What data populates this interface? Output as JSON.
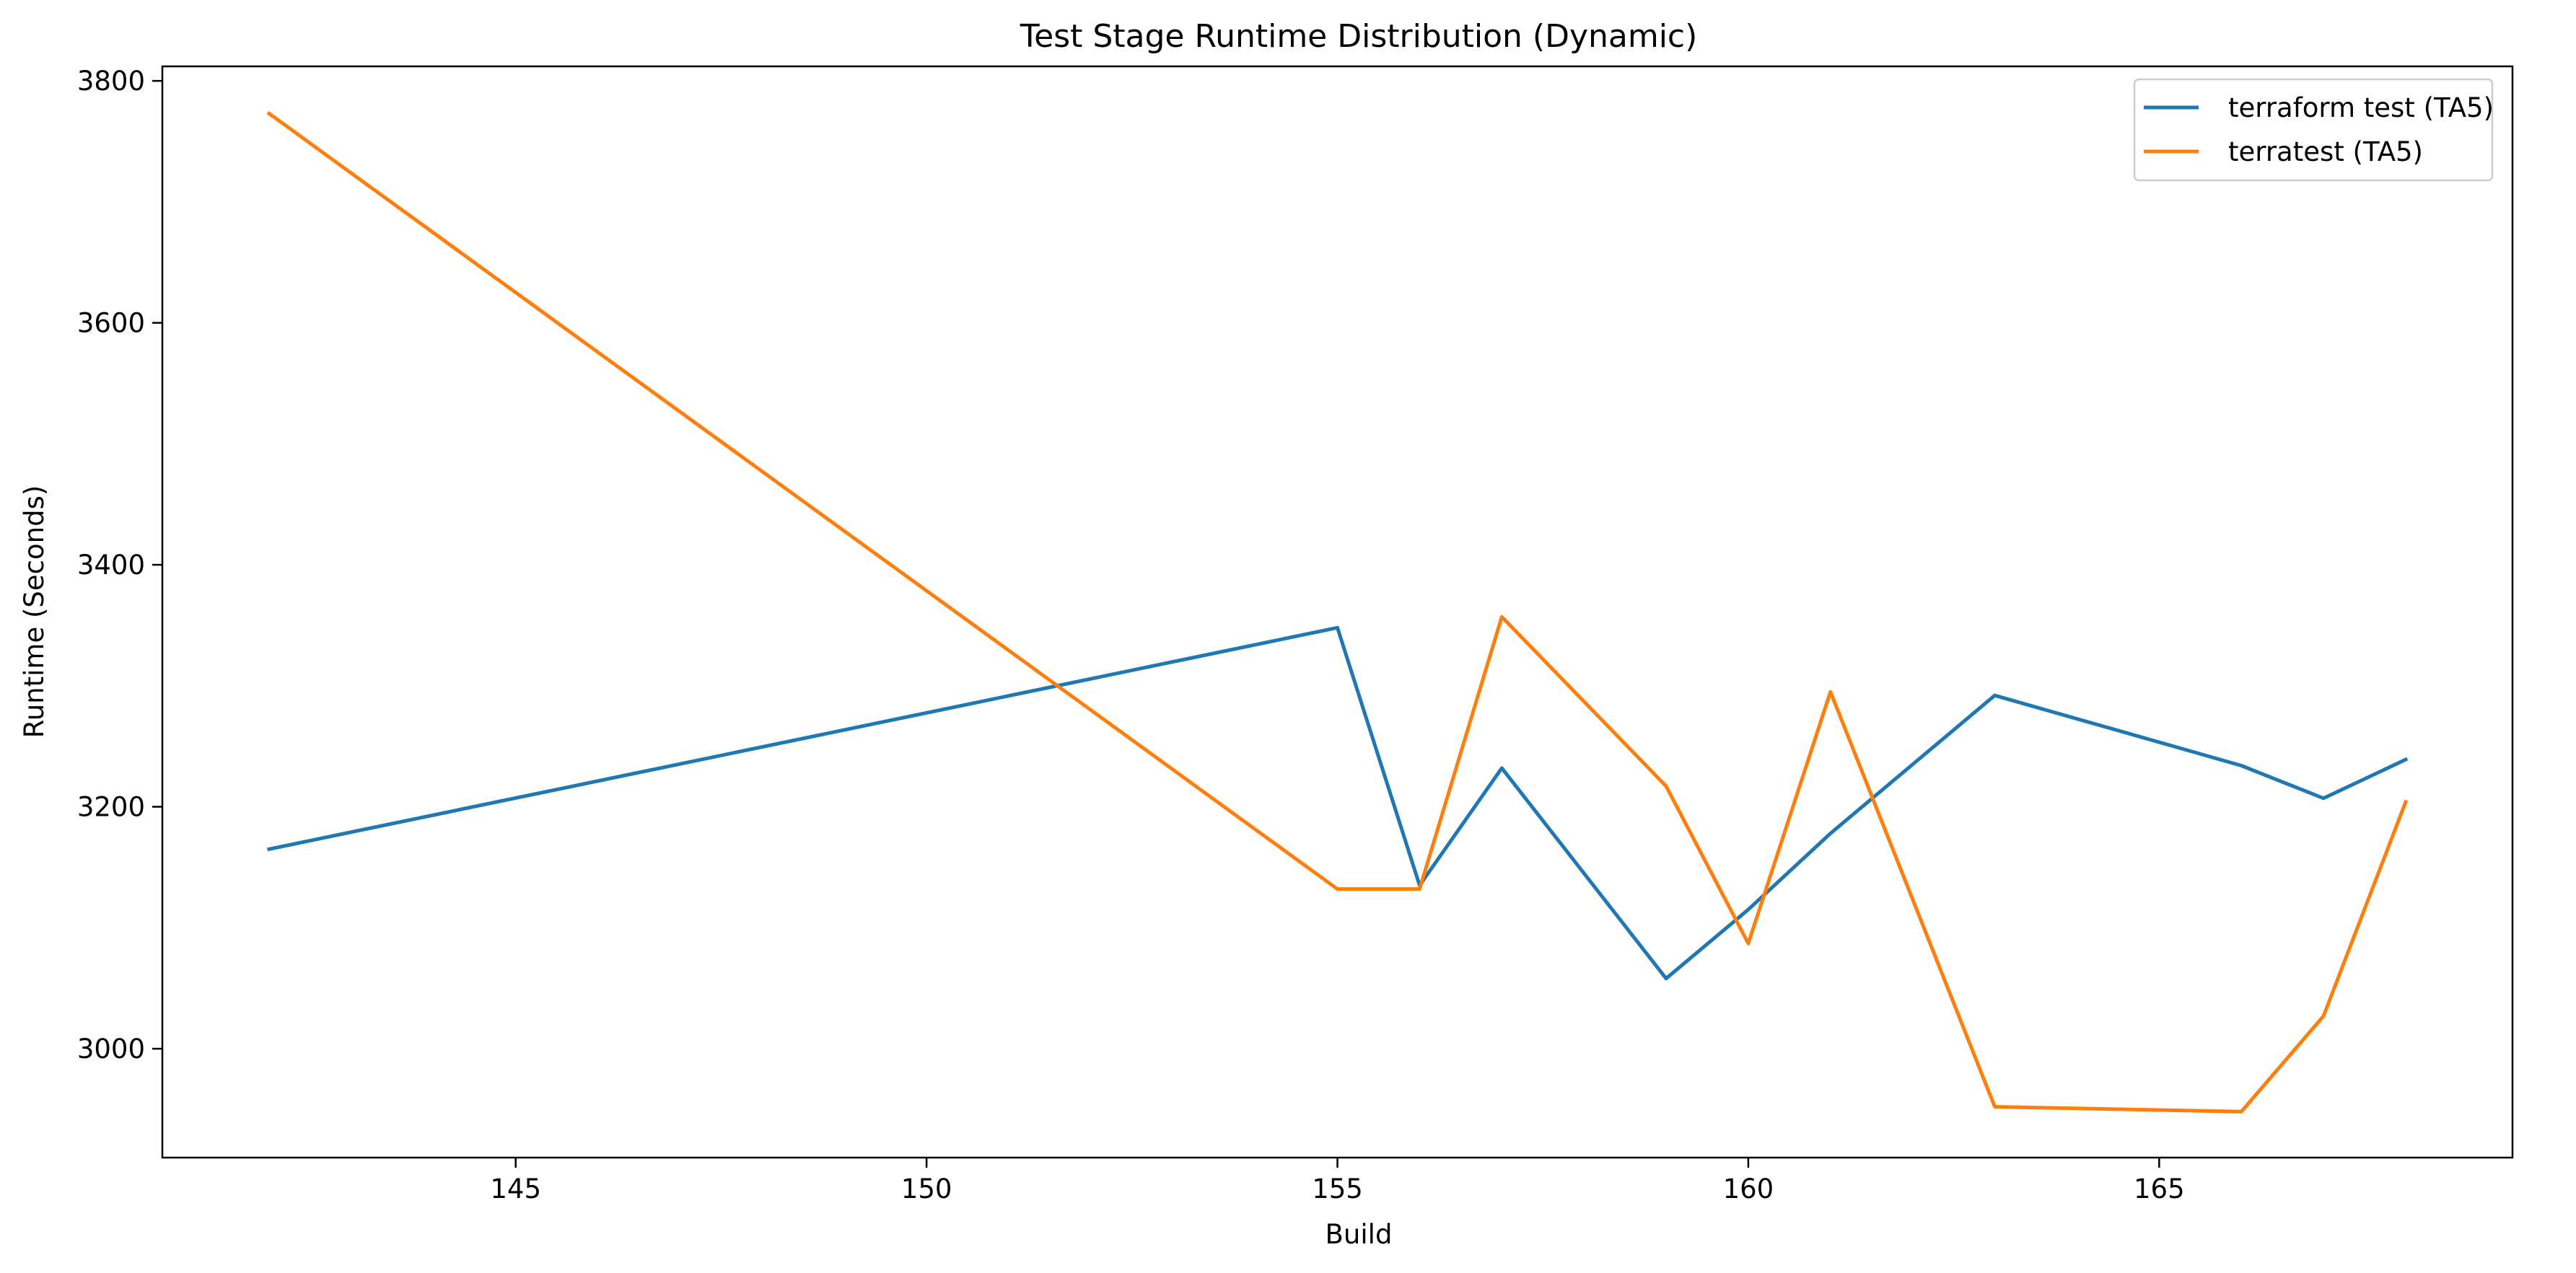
{
  "chart_data": {
    "type": "line",
    "title": "Test Stage Runtime Distribution (Dynamic)",
    "xlabel": "Build",
    "ylabel": "Runtime (Seconds)",
    "xlim": [
      140.7,
      169.3
    ],
    "ylim": [
      2910,
      3812
    ],
    "x_ticks": [
      145,
      150,
      155,
      160,
      165
    ],
    "y_ticks": [
      3000,
      3200,
      3400,
      3600,
      3800
    ],
    "grid": false,
    "legend_position": "top-right",
    "series": [
      {
        "name": "terraform test (TA5)",
        "color": "#1f77b4",
        "x": [
          142,
          155,
          156,
          157,
          159,
          160,
          161,
          163,
          166,
          167,
          168
        ],
        "y": [
          3165,
          3348,
          3135,
          3232,
          3058,
          3115,
          3178,
          3292,
          3234,
          3207,
          3239
        ]
      },
      {
        "name": "terratest (TA5)",
        "color": "#ff7f0e",
        "x": [
          142,
          155,
          156,
          157,
          159,
          160,
          161,
          163,
          166,
          167,
          168
        ],
        "y": [
          3773,
          3132,
          3132,
          3357,
          3217,
          3087,
          3295,
          2952,
          2948,
          3027,
          3204
        ]
      }
    ]
  }
}
